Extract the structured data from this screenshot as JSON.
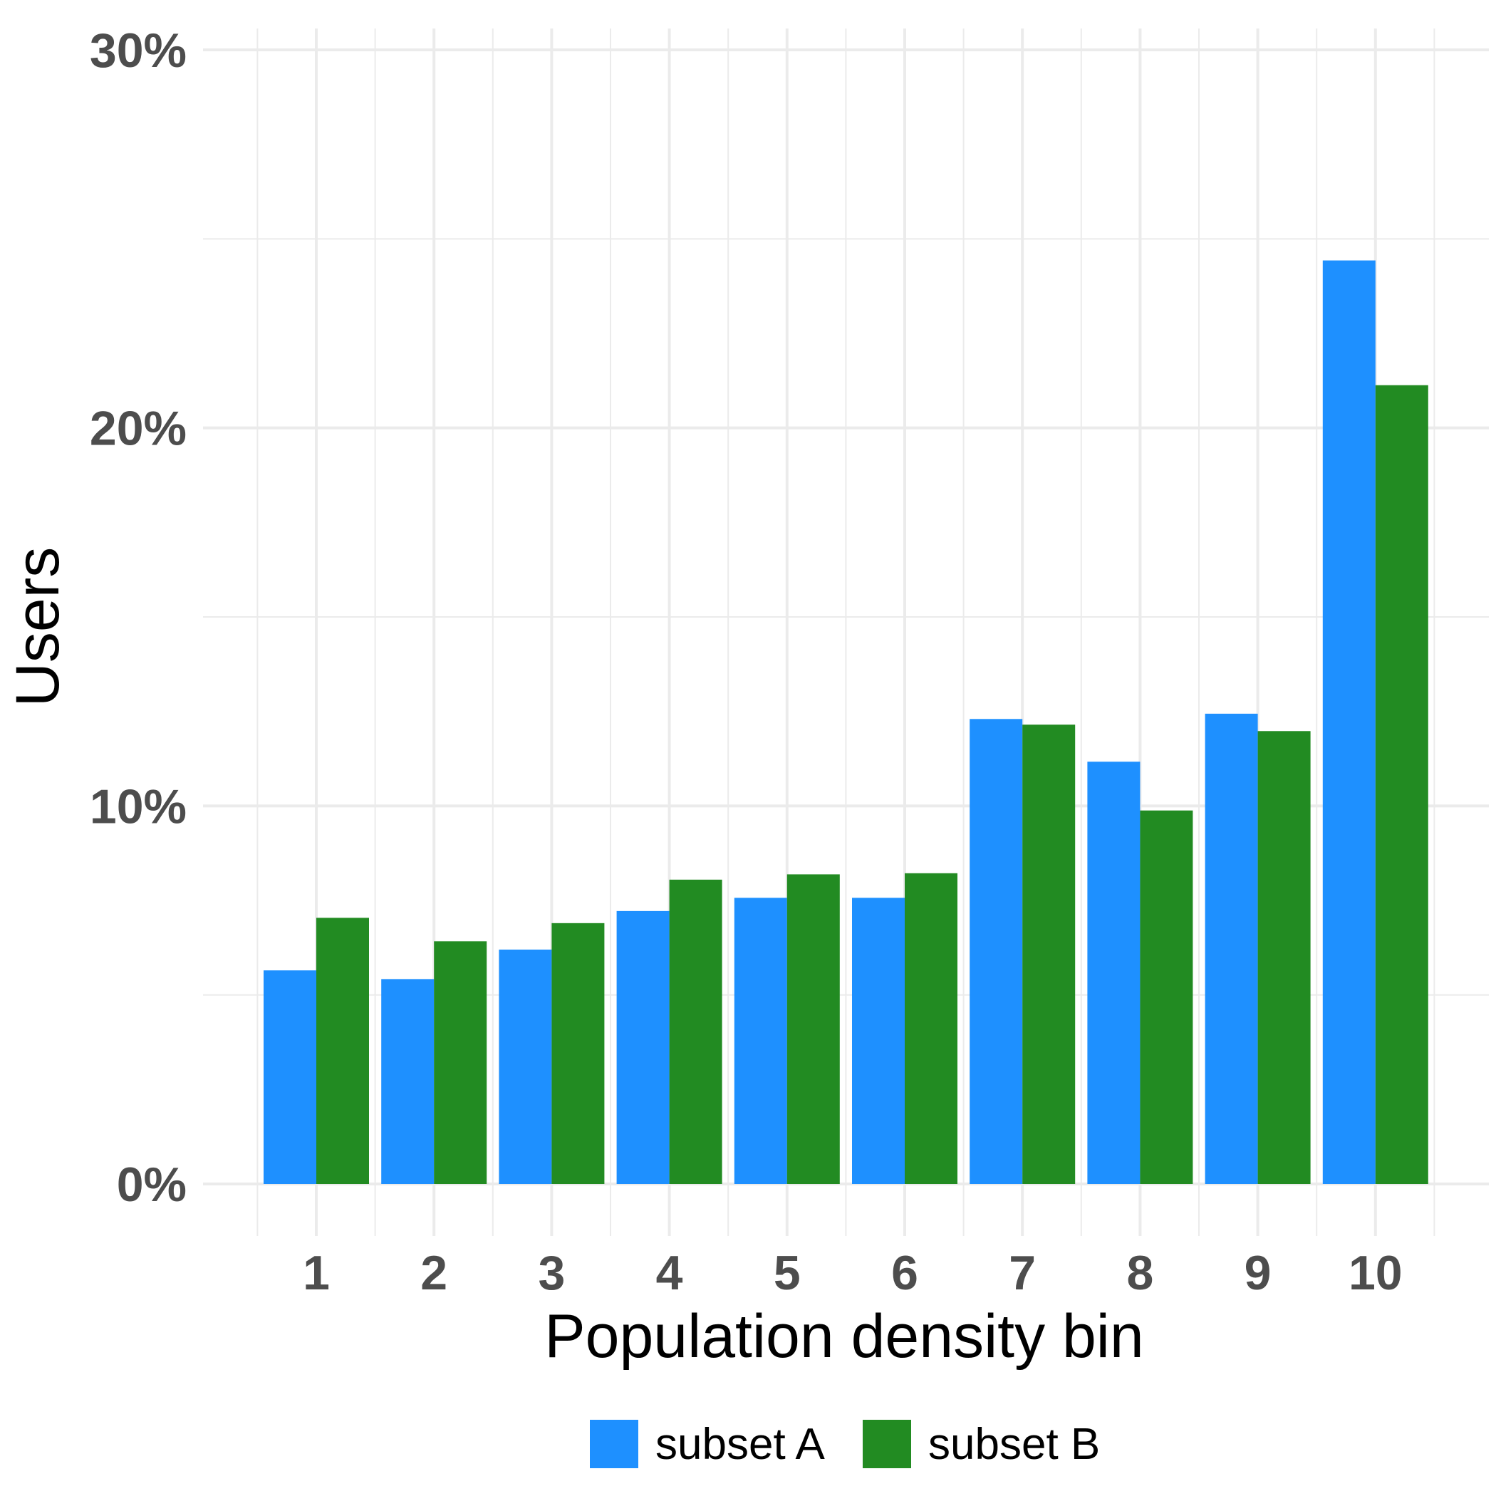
{
  "chart_data": {
    "type": "bar",
    "title": "",
    "xlabel": "Population density bin",
    "ylabel": "Users",
    "categories": [
      "1",
      "2",
      "3",
      "4",
      "5",
      "6",
      "7",
      "8",
      "9",
      "10"
    ],
    "series": [
      {
        "name": "subset A",
        "color": "#1e90ff",
        "values": [
          5.65,
          5.42,
          6.2,
          7.22,
          7.57,
          7.57,
          12.3,
          11.17,
          12.44,
          24.43
        ]
      },
      {
        "name": "subset B",
        "color": "#228b22",
        "values": [
          7.04,
          6.42,
          6.9,
          8.05,
          8.19,
          8.22,
          12.15,
          9.88,
          11.98,
          21.13
        ]
      }
    ],
    "ylim": [
      0,
      30
    ],
    "yticks": [
      0,
      10,
      20,
      30
    ],
    "ytick_labels": [
      "0%",
      "10%",
      "20%",
      "30%"
    ],
    "grid": true,
    "legend_position": "bottom"
  }
}
